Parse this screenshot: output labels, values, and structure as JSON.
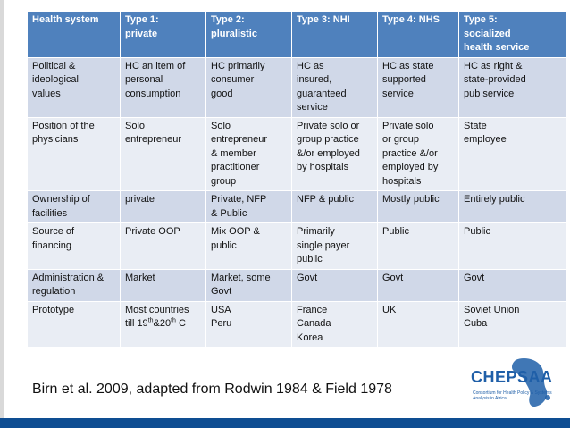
{
  "table": {
    "headers": [
      "Health system",
      "Type 1:\nprivate",
      "Type 2:\npluralistic",
      "Type 3: NHI",
      "Type 4: NHS",
      "Type 5:\nsocialized\nhealth service"
    ],
    "rows": [
      [
        "Political &\nideological\nvalues",
        "HC an item of\npersonal\nconsumption",
        "HC primarily\nconsumer\ngood",
        "HC as\ninsured,\nguaranteed\nservice",
        "HC as state\nsupported\nservice",
        "HC as right &\nstate-provided\npub service"
      ],
      [
        "Position of the\nphysicians",
        "Solo\nentrepreneur",
        "Solo\nentrepreneur\n& member\npractitioner\ngroup",
        "Private solo or\ngroup practice\n&/or employed\nby hospitals",
        "Private solo\nor group\npractice &/or\nemployed by\nhospitals",
        "State\nemployee"
      ],
      [
        "Ownership of\nfacilities",
        "private",
        "Private, NFP\n& Public",
        "NFP & public",
        "Mostly public",
        "Entirely public"
      ],
      [
        "Source of\nfinancing",
        "Private OOP",
        "Mix OOP &\npublic",
        "Primarily\nsingle payer\npublic",
        "Public",
        "Public"
      ],
      [
        "Administration &\nregulation",
        "Market",
        "Market, some\nGovt",
        "Govt",
        "Govt",
        "Govt"
      ],
      [
        "Prototype",
        "Most countries",
        "USA\nPeru",
        "France\nCanada\nKorea",
        "UK",
        "Soviet Union\nCuba"
      ]
    ],
    "prototype_type1_line2": {
      "prefix": "till 19",
      "sup1": "th",
      "mid": "&20",
      "sup2": "th",
      "suffix": " C"
    }
  },
  "citation": "Birn et al. 2009, adapted from Rodwin 1984 & Field 1978",
  "logo": {
    "name": "CHEPSAA",
    "tagline": "Consortium for Health Policy & Systems Analysis in Africa"
  },
  "colors": {
    "header_bg": "#4f81bd",
    "row_odd_bg": "#d0d8e8",
    "row_even_bg": "#e9edf4",
    "logo_blue": "#1f5fa8",
    "footer_bar": "#0e4d92"
  }
}
